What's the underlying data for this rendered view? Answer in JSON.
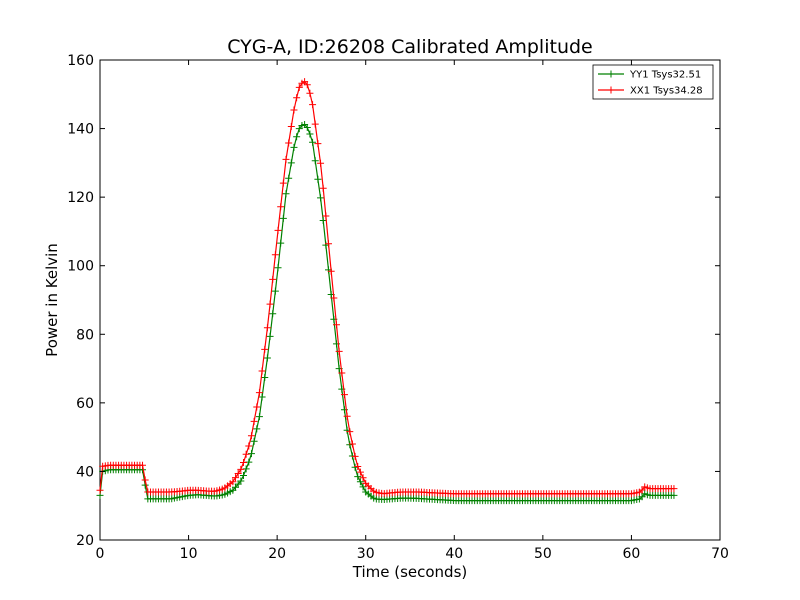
{
  "chart_data": {
    "type": "line",
    "title": "CYG-A, ID:26208 Calibrated Amplitude",
    "xlabel": "Time (seconds)",
    "ylabel": "Power in Kelvin",
    "xlim": [
      0,
      70
    ],
    "ylim": [
      20,
      160
    ],
    "xticks": [
      0,
      10,
      20,
      30,
      40,
      50,
      60,
      70
    ],
    "yticks": [
      20,
      40,
      60,
      80,
      100,
      120,
      140,
      160
    ],
    "grid": false,
    "legend_position": "top-right",
    "marker": "plus",
    "series": [
      {
        "name": "YY1 Tsys32.51",
        "color": "#008000",
        "points": [
          [
            0,
            33
          ],
          [
            0.3,
            40
          ],
          [
            1,
            40.5
          ],
          [
            2,
            40.5
          ],
          [
            3,
            40.5
          ],
          [
            4,
            40.5
          ],
          [
            4.8,
            40.5
          ],
          [
            5,
            40
          ],
          [
            5.2,
            32
          ],
          [
            6,
            32
          ],
          [
            8,
            32
          ],
          [
            9,
            32.5
          ],
          [
            10,
            33
          ],
          [
            11,
            33.2
          ],
          [
            12,
            33
          ],
          [
            13,
            32.8
          ],
          [
            14,
            33.2
          ],
          [
            15,
            34.5
          ],
          [
            16,
            37.5
          ],
          [
            17,
            44
          ],
          [
            18,
            56
          ],
          [
            19,
            75
          ],
          [
            20,
            97
          ],
          [
            21,
            121
          ],
          [
            22,
            136
          ],
          [
            22.5,
            140
          ],
          [
            23,
            141.5
          ],
          [
            23.5,
            140
          ],
          [
            24,
            136
          ],
          [
            25,
            118
          ],
          [
            26,
            94
          ],
          [
            27,
            70
          ],
          [
            28,
            50
          ],
          [
            29,
            39
          ],
          [
            30,
            34
          ],
          [
            31,
            32
          ],
          [
            32,
            31.8
          ],
          [
            33,
            32
          ],
          [
            34,
            32.2
          ],
          [
            35,
            32.2
          ],
          [
            36,
            32.1
          ],
          [
            38,
            31.8
          ],
          [
            40,
            31.5
          ],
          [
            45,
            31.5
          ],
          [
            50,
            31.5
          ],
          [
            55,
            31.5
          ],
          [
            60,
            31.5
          ],
          [
            61,
            32
          ],
          [
            61.5,
            33.5
          ],
          [
            62,
            33
          ],
          [
            63,
            33
          ],
          [
            64,
            33
          ],
          [
            64.8,
            33
          ]
        ]
      },
      {
        "name": "XX1 Tsys34.28",
        "color": "#ff0000",
        "points": [
          [
            0,
            34.5
          ],
          [
            0.3,
            41.5
          ],
          [
            1,
            41.8
          ],
          [
            2,
            41.8
          ],
          [
            3,
            41.8
          ],
          [
            4,
            41.8
          ],
          [
            4.8,
            41.8
          ],
          [
            5,
            41
          ],
          [
            5.2,
            34
          ],
          [
            6,
            34
          ],
          [
            8,
            34
          ],
          [
            9,
            34.2
          ],
          [
            10,
            34.5
          ],
          [
            11,
            34.5
          ],
          [
            12,
            34.3
          ],
          [
            13,
            34.2
          ],
          [
            14,
            35
          ],
          [
            15,
            37
          ],
          [
            16,
            41
          ],
          [
            17,
            49
          ],
          [
            18,
            63
          ],
          [
            19,
            84
          ],
          [
            20,
            108
          ],
          [
            21,
            131
          ],
          [
            22,
            147
          ],
          [
            22.5,
            152
          ],
          [
            23,
            154
          ],
          [
            23.5,
            152.5
          ],
          [
            24,
            147
          ],
          [
            25,
            128
          ],
          [
            26,
            101
          ],
          [
            27,
            75
          ],
          [
            28,
            54
          ],
          [
            29,
            42
          ],
          [
            30,
            36.5
          ],
          [
            31,
            34
          ],
          [
            32,
            33.5
          ],
          [
            33,
            33.8
          ],
          [
            34,
            34
          ],
          [
            35,
            34
          ],
          [
            36,
            34
          ],
          [
            38,
            33.7
          ],
          [
            40,
            33.5
          ],
          [
            45,
            33.5
          ],
          [
            50,
            33.5
          ],
          [
            55,
            33.5
          ],
          [
            60,
            33.5
          ],
          [
            61,
            34
          ],
          [
            61.5,
            35.5
          ],
          [
            62,
            35
          ],
          [
            63,
            35
          ],
          [
            64,
            35
          ],
          [
            64.8,
            35
          ]
        ]
      }
    ]
  }
}
